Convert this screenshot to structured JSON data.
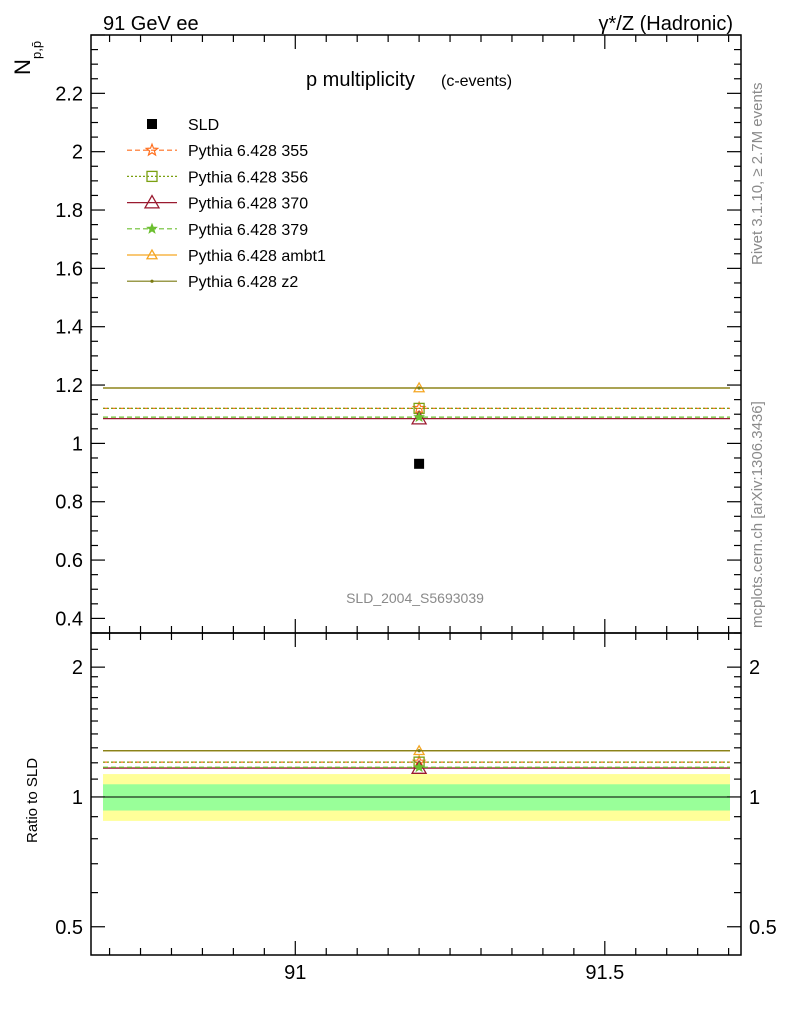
{
  "header": {
    "left": "91 GeV ee",
    "right": "γ*/Z (Hadronic)"
  },
  "side_labels": {
    "rivet": "Rivet 3.1.10, ≥ 2.7M events",
    "mcplots": "mcplots.cern.ch [arXiv:1306.3436]"
  },
  "chart_data": {
    "type": "scatter",
    "title": "p multiplicity",
    "subtitle": "(c-events)",
    "ylabel": "N",
    "ylabel_sub": "p,p̄",
    "analysis_id": "SLD_2004_S5693039",
    "x_range": [
      90.67,
      91.72
    ],
    "ylim": [
      0.35,
      2.4
    ],
    "y_ticks": [
      0.4,
      0.6,
      0.8,
      1,
      1.2,
      1.4,
      1.6,
      1.8,
      2,
      2.2
    ],
    "y_tick_labels": [
      "0.4",
      "0.6",
      "0.8",
      "1",
      "1.2",
      "1.4",
      "1.6",
      "1.8",
      "2",
      "2.2"
    ],
    "x_ticks": [
      91,
      91.5
    ],
    "x_tick_labels": [
      "91",
      "91.5"
    ],
    "data": {
      "name": "SLD",
      "x": 91.2,
      "y": 0.93,
      "color": "#000000"
    },
    "series": [
      {
        "name": "Pythia 6.428 355",
        "y": 1.12,
        "color": "#ff6f1e",
        "dash": "5,3",
        "marker": "star"
      },
      {
        "name": "Pythia 6.428 356",
        "y": 1.12,
        "color": "#7ba012",
        "dash": "2,2",
        "marker": "square"
      },
      {
        "name": "Pythia 6.428 370",
        "y": 1.085,
        "color": "#9a1a30",
        "dash": "",
        "marker": "triangle"
      },
      {
        "name": "Pythia 6.428 379",
        "y": 1.09,
        "color": "#6cbf30",
        "dash": "5,3",
        "marker": "star-small"
      },
      {
        "name": "Pythia 6.428 ambt1",
        "y": 1.19,
        "color": "#f5a623",
        "dash": "",
        "marker": "triangle-small"
      },
      {
        "name": "Pythia 6.428 z2",
        "y": 1.19,
        "color": "#7a7a10",
        "dash": "",
        "marker": "dot"
      }
    ],
    "ratio": {
      "ylabel": "Ratio to SLD",
      "ylim": [
        0.43,
        2.4
      ],
      "y_ticks": [
        0.5,
        1,
        2
      ],
      "y_tick_labels": [
        "0.5",
        "1",
        "2"
      ],
      "band_inner": [
        0.93,
        1.07
      ],
      "band_outer": [
        0.88,
        1.13
      ],
      "band_inner_color": "#99ff99",
      "band_outer_color": "#ffff99"
    }
  }
}
